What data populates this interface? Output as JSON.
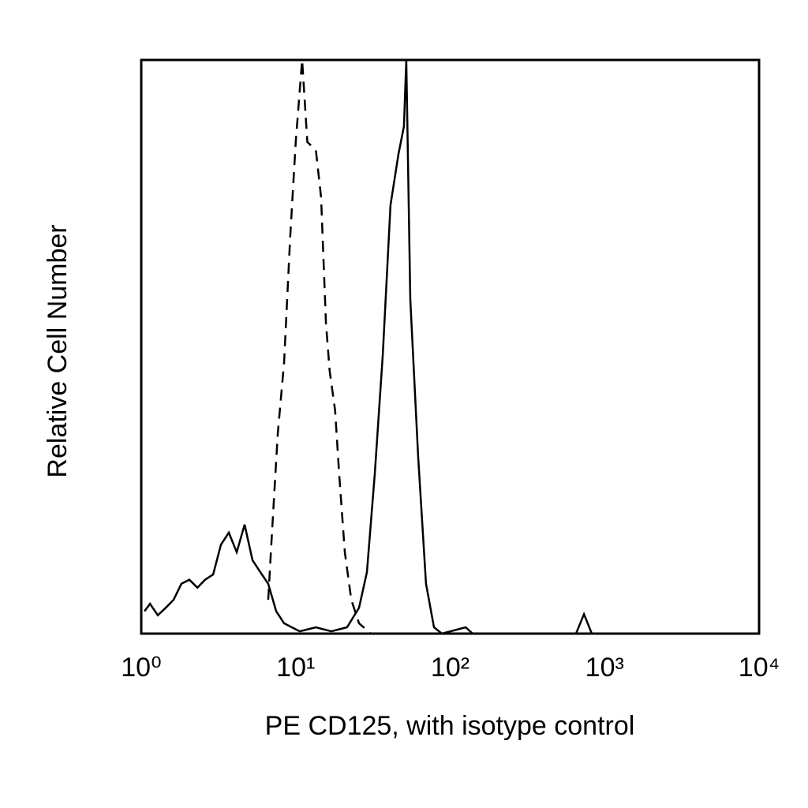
{
  "chart_data": {
    "type": "line",
    "x_label": "PE CD125, with isotype control",
    "y_label": "Relative Cell Number",
    "x_log": true,
    "xlim": [
      1,
      10000
    ],
    "xticks": [
      {
        "value": 1,
        "label": "10⁰"
      },
      {
        "value": 10,
        "label": "10¹"
      },
      {
        "value": 100,
        "label": "10²"
      },
      {
        "value": 1000,
        "label": "10³"
      },
      {
        "value": 10000,
        "label": "10⁴"
      }
    ],
    "ylim": [
      0,
      100
    ],
    "series": [
      {
        "color": "#000000",
        "line_style": "solid",
        "x": [
          1.05,
          1.14,
          1.28,
          1.44,
          1.62,
          1.82,
          2.05,
          2.31,
          2.59,
          2.92,
          3.28,
          3.69,
          4.15,
          4.67,
          5.25,
          5.91,
          6.64,
          7.47,
          8.41,
          10.6,
          13.5,
          17.0,
          21.5,
          25.7,
          28.9,
          32.5,
          36.6,
          41.1,
          46.3,
          50.2,
          52.0,
          55.2,
          62.1,
          69.8,
          78.6,
          88.4,
          126,
          140,
          653,
          735,
          826,
          9500
        ],
        "values": [
          3.9,
          5.2,
          3.2,
          4.5,
          5.9,
          8.7,
          9.4,
          8.0,
          9.4,
          10.3,
          15.5,
          17.6,
          14.2,
          19.0,
          12.8,
          10.7,
          8.7,
          3.9,
          1.8,
          0.4,
          1.1,
          0.4,
          1.1,
          4.5,
          10.7,
          27.9,
          48.6,
          74.7,
          83.6,
          88.4,
          100,
          58.2,
          30.7,
          8.7,
          1.1,
          0,
          1.1,
          0,
          0,
          3.4,
          0,
          0
        ]
      },
      {
        "color": "#000000",
        "line_style": "dashed",
        "x": [
          6.64,
          7.05,
          7.65,
          8.41,
          9.21,
          10.0,
          11.0,
          11.9,
          13.5,
          14.6,
          15.7,
          16.6,
          18.0,
          19.1,
          20.8,
          22.9,
          25.7,
          30.6
        ],
        "values": [
          5.9,
          18.3,
          34.8,
          47.2,
          69.2,
          85.7,
          100,
          85.7,
          84.3,
          76.1,
          54.1,
          45.8,
          38.9,
          27.9,
          14.2,
          5.9,
          1.8,
          0
        ]
      }
    ]
  }
}
